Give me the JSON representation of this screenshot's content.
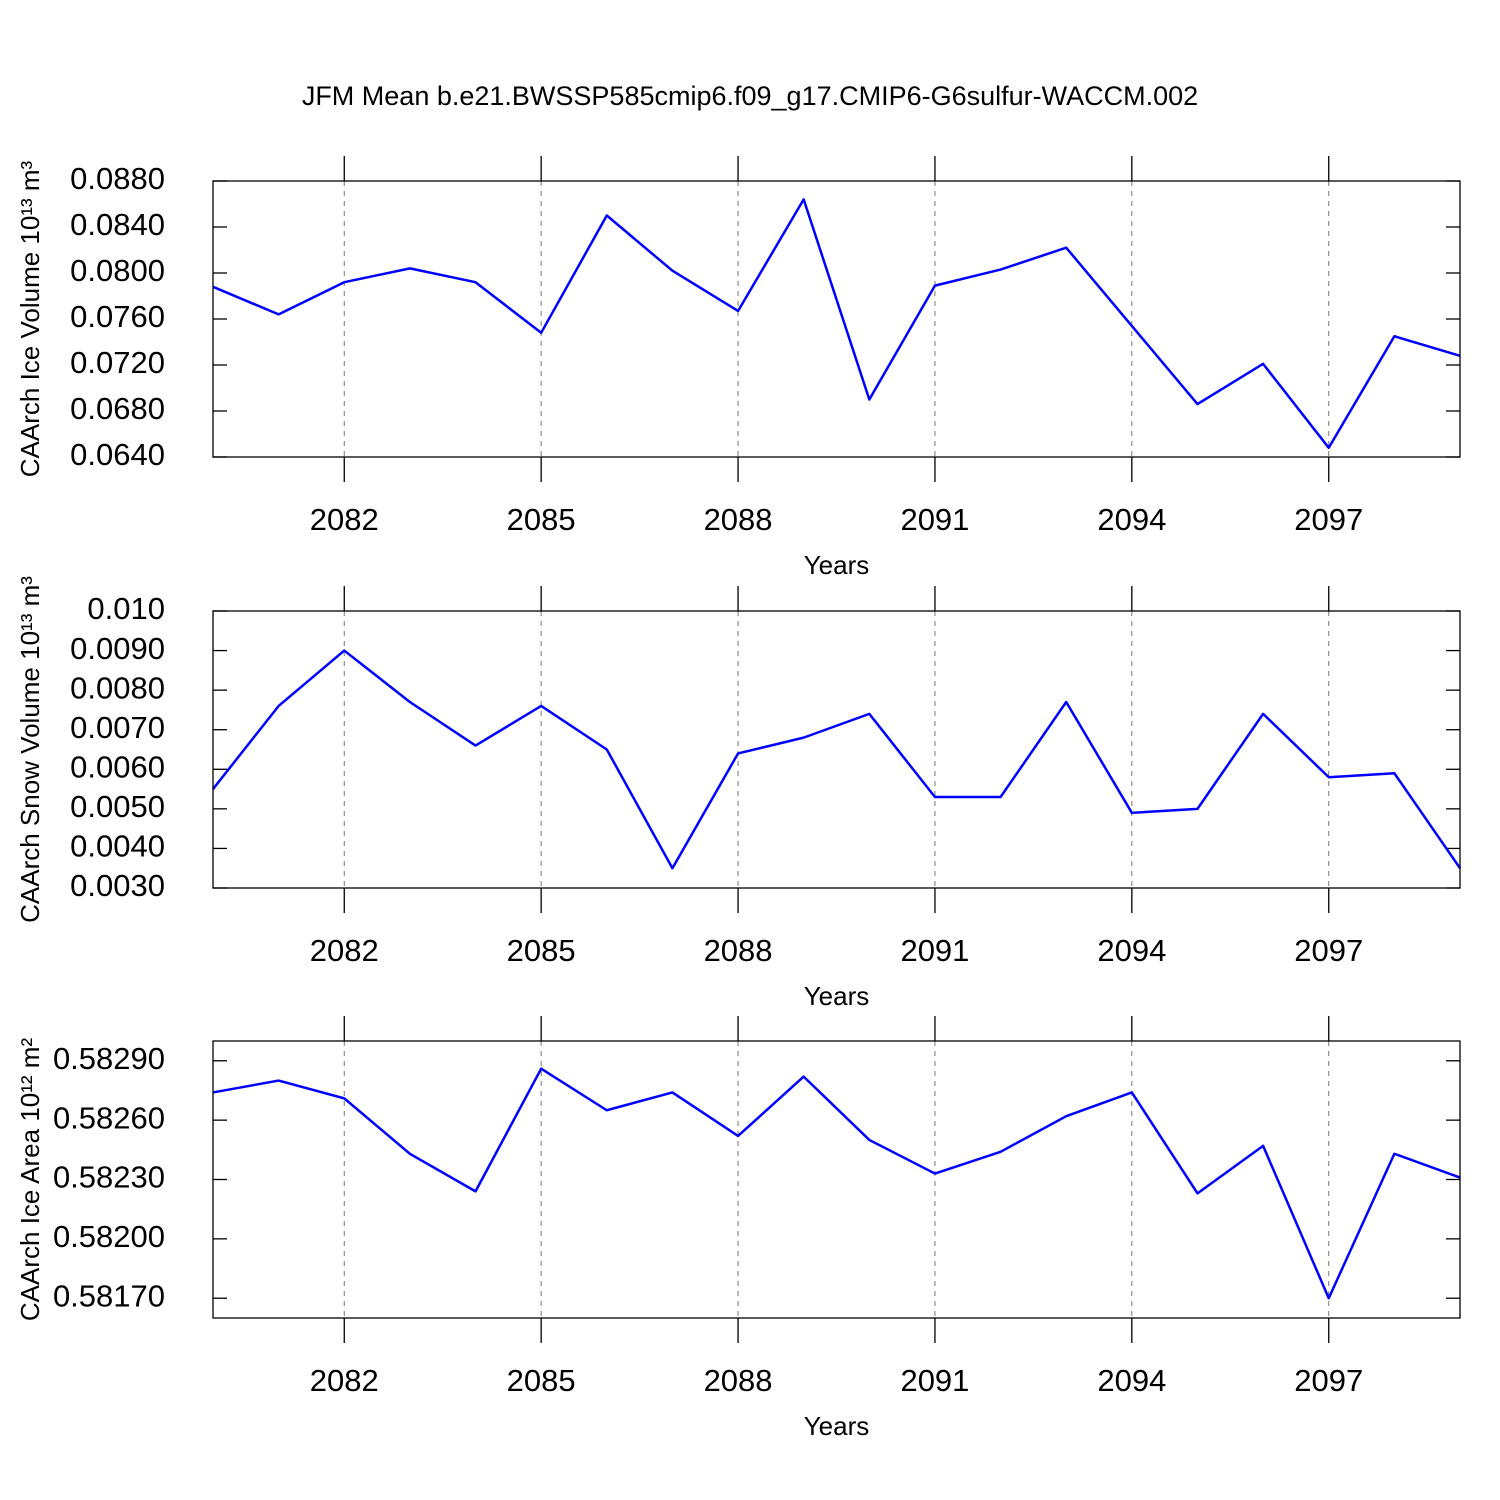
{
  "title": "JFM Mean b.e21.BWSSP585cmip6.f09_g17.CMIP6-G6sulfur-WACCM.002",
  "chart_data": [
    {
      "type": "line",
      "ylabel": "CAArch Ice Volume 10¹³ m³",
      "xlabel": "Years",
      "x": [
        2080,
        2081,
        2082,
        2083,
        2084,
        2085,
        2086,
        2087,
        2088,
        2089,
        2090,
        2091,
        2092,
        2093,
        2094,
        2095,
        2096,
        2097,
        2098,
        2099
      ],
      "values": [
        0.0788,
        0.0764,
        0.0792,
        0.0804,
        0.0792,
        0.0748,
        0.085,
        0.0802,
        0.0767,
        0.0864,
        0.069,
        0.0789,
        0.0803,
        0.0822,
        0.0754,
        0.0686,
        0.0721,
        0.0648,
        0.0745,
        0.0728
      ],
      "color": "#0000ff",
      "xlim": [
        2080,
        2099
      ],
      "xticks": [
        2082,
        2085,
        2088,
        2091,
        2094,
        2097
      ],
      "grid": true,
      "ylim": [
        0.064,
        0.088
      ],
      "yticks": [
        {
          "value": 0.064,
          "label": "0.0640"
        },
        {
          "value": 0.068,
          "label": "0.0680"
        },
        {
          "value": 0.072,
          "label": "0.0720"
        },
        {
          "value": 0.076,
          "label": "0.0760"
        },
        {
          "value": 0.08,
          "label": "0.0800"
        },
        {
          "value": 0.084,
          "label": "0.0840"
        },
        {
          "value": 0.088,
          "label": "0.0880"
        }
      ]
    },
    {
      "type": "line",
      "ylabel": "CAArch Snow Volume 10¹³ m³",
      "xlabel": "Years",
      "x": [
        2080,
        2081,
        2082,
        2083,
        2084,
        2085,
        2086,
        2087,
        2088,
        2089,
        2090,
        2091,
        2092,
        2093,
        2094,
        2095,
        2096,
        2097,
        2098,
        2099
      ],
      "values": [
        0.0055,
        0.0076,
        0.009,
        0.0077,
        0.0066,
        0.0076,
        0.0065,
        0.0035,
        0.0064,
        0.0068,
        0.0074,
        0.0053,
        0.0053,
        0.0077,
        0.0049,
        0.005,
        0.0074,
        0.0058,
        0.0059,
        0.0035
      ],
      "color": "#0000ff",
      "xlim": [
        2080,
        2099
      ],
      "xticks": [
        2082,
        2085,
        2088,
        2091,
        2094,
        2097
      ],
      "grid": true,
      "ylim": [
        0.003,
        0.01
      ],
      "yticks": [
        {
          "value": 0.003,
          "label": "0.0030"
        },
        {
          "value": 0.004,
          "label": "0.0040"
        },
        {
          "value": 0.005,
          "label": "0.0050"
        },
        {
          "value": 0.006,
          "label": "0.0060"
        },
        {
          "value": 0.007,
          "label": "0.0070"
        },
        {
          "value": 0.008,
          "label": "0.0080"
        },
        {
          "value": 0.009,
          "label": "0.0090"
        },
        {
          "value": 0.01,
          "label": "0.010"
        }
      ]
    },
    {
      "type": "line",
      "ylabel": "CAArch Ice Area 10¹² m²",
      "xlabel": "Years",
      "x": [
        2080,
        2081,
        2082,
        2083,
        2084,
        2085,
        2086,
        2087,
        2088,
        2089,
        2090,
        2091,
        2092,
        2093,
        2094,
        2095,
        2096,
        2097,
        2098,
        2099
      ],
      "values": [
        0.58274,
        0.5828,
        0.58271,
        0.58243,
        0.58224,
        0.58286,
        0.58265,
        0.58274,
        0.58252,
        0.58282,
        0.5825,
        0.58233,
        0.58244,
        0.58262,
        0.58274,
        0.58223,
        0.58247,
        0.5817,
        0.58243,
        0.58231
      ],
      "color": "#0000ff",
      "xlim": [
        2080,
        2099
      ],
      "xticks": [
        2082,
        2085,
        2088,
        2091,
        2094,
        2097
      ],
      "grid": true,
      "ylim": [
        0.5816,
        0.583
      ],
      "yticks": [
        {
          "value": 0.5817,
          "label": "0.58170"
        },
        {
          "value": 0.582,
          "label": "0.58200"
        },
        {
          "value": 0.5823,
          "label": "0.58230"
        },
        {
          "value": 0.5826,
          "label": "0.58260"
        },
        {
          "value": 0.5829,
          "label": "0.58290"
        }
      ]
    }
  ]
}
